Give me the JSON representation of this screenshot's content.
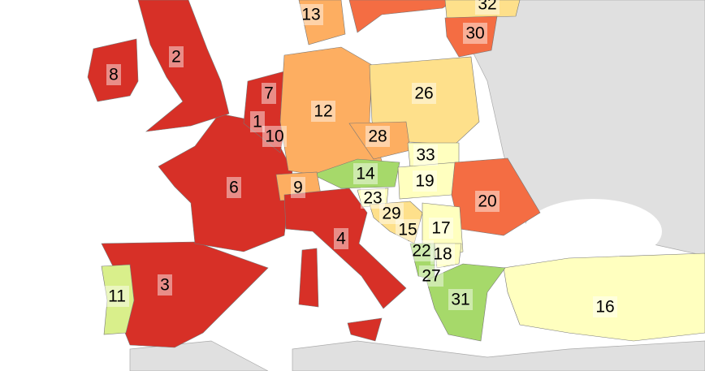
{
  "labels": [
    13,
    32,
    30,
    2,
    8,
    7,
    26,
    12,
    1,
    10,
    28,
    33,
    14,
    19,
    6,
    9,
    20,
    23,
    29,
    15,
    17,
    4,
    22,
    18,
    27,
    3,
    11,
    31,
    16
  ]
}
